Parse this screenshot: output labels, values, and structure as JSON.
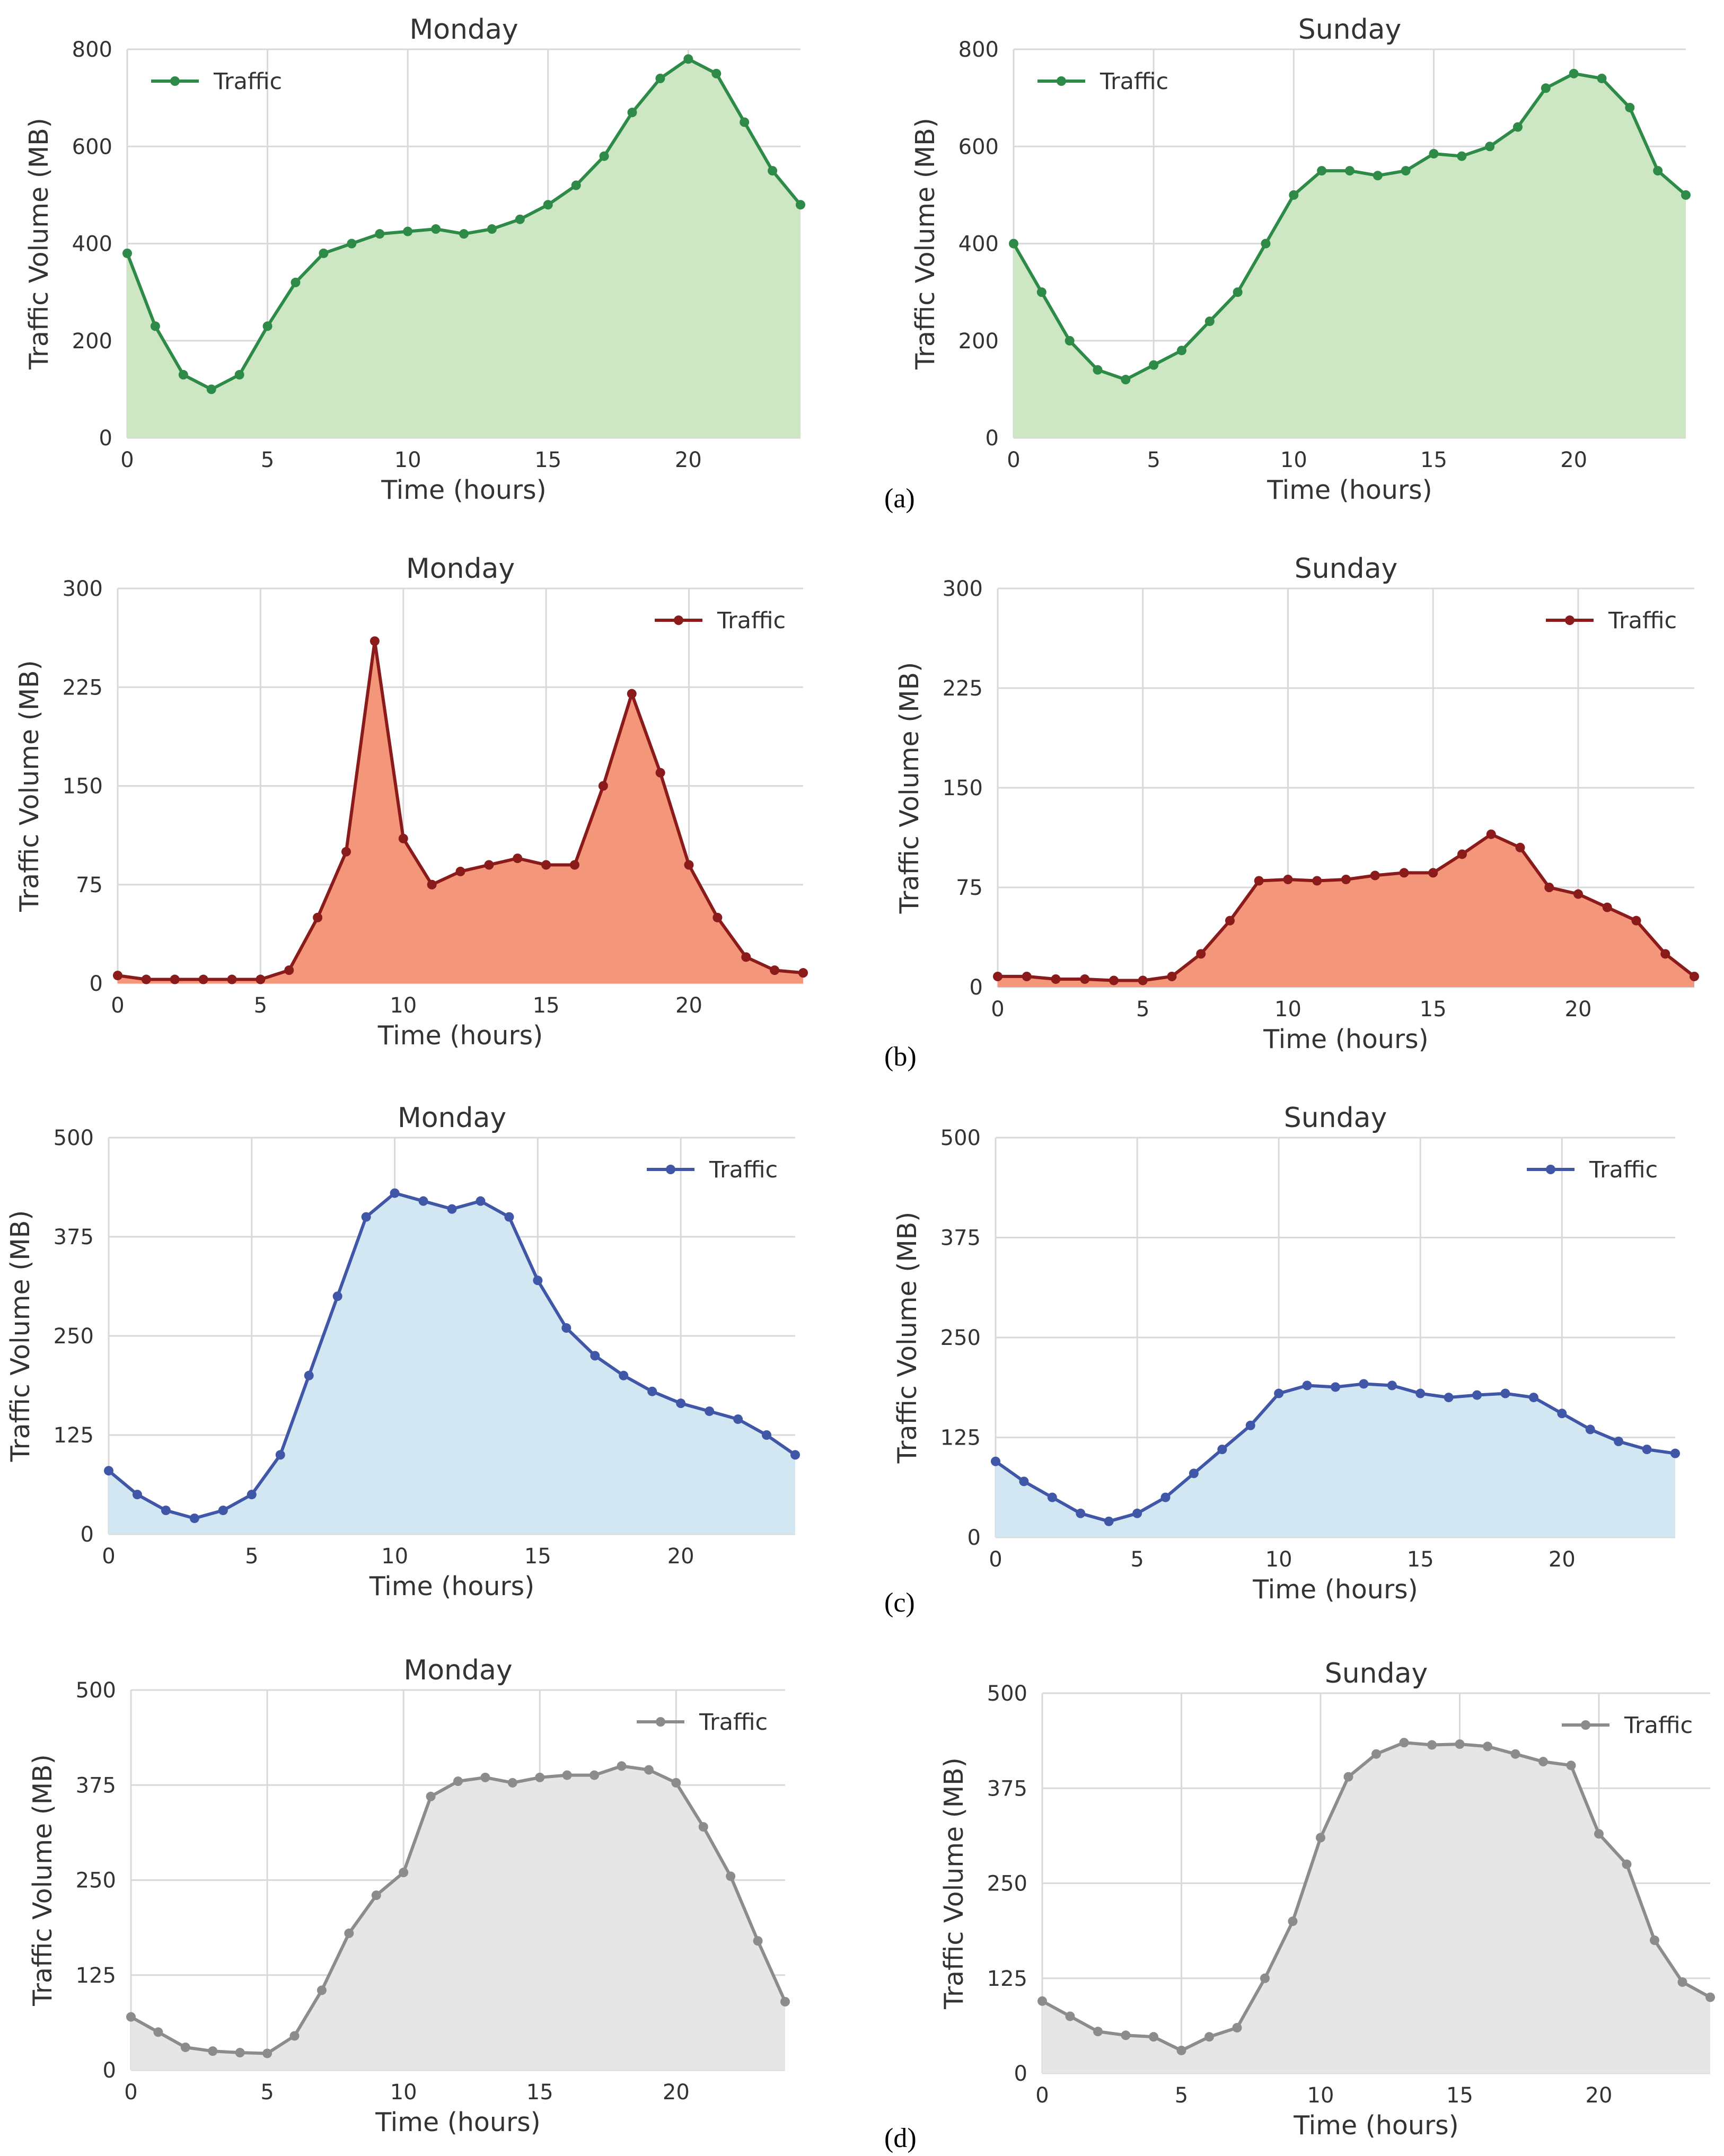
{
  "figure": {
    "panel_labels": [
      "(a)",
      "(b)",
      "(c)",
      "(d)"
    ]
  },
  "chart_data": [
    {
      "type": "area",
      "panel": "(a)",
      "title": "Monday",
      "xlabel": "Time (hours)",
      "ylabel": "Traffic Volume (MB)",
      "legend": "Traffic",
      "legend_position": "top-left",
      "xlim": [
        0,
        24
      ],
      "ylim": [
        0,
        800
      ],
      "xticks": [
        0,
        5,
        10,
        15,
        20
      ],
      "yticks": [
        0,
        200,
        400,
        600,
        800
      ],
      "line_color": "#2e8b47",
      "fill_color": "#cde6c3",
      "x": [
        0,
        1,
        2,
        3,
        4,
        5,
        6,
        7,
        8,
        9,
        10,
        11,
        12,
        13,
        14,
        15,
        16,
        17,
        18,
        19,
        20,
        21,
        22,
        23,
        24
      ],
      "values": [
        380,
        230,
        130,
        100,
        130,
        230,
        320,
        380,
        400,
        420,
        425,
        430,
        420,
        430,
        450,
        480,
        520,
        580,
        670,
        740,
        780,
        750,
        650,
        550,
        480
      ]
    },
    {
      "type": "area",
      "panel": "(a)",
      "title": "Sunday",
      "xlabel": "Time (hours)",
      "ylabel": "Traffic Volume (MB)",
      "legend": "Traffic",
      "legend_position": "top-left",
      "xlim": [
        0,
        24
      ],
      "ylim": [
        0,
        800
      ],
      "xticks": [
        0,
        5,
        10,
        15,
        20
      ],
      "yticks": [
        0,
        200,
        400,
        600,
        800
      ],
      "line_color": "#2e8b47",
      "fill_color": "#cde6c3",
      "x": [
        0,
        1,
        2,
        3,
        4,
        5,
        6,
        7,
        8,
        9,
        10,
        11,
        12,
        13,
        14,
        15,
        16,
        17,
        18,
        19,
        20,
        21,
        22,
        23,
        24
      ],
      "values": [
        400,
        300,
        200,
        140,
        120,
        150,
        180,
        240,
        300,
        400,
        500,
        550,
        550,
        540,
        550,
        585,
        580,
        600,
        640,
        720,
        750,
        740,
        680,
        550,
        500
      ]
    },
    {
      "type": "area",
      "panel": "(b)",
      "title": "Monday",
      "xlabel": "Time (hours)",
      "ylabel": "Traffic Volume (MB)",
      "legend": "Traffic",
      "legend_position": "top-right",
      "xlim": [
        0,
        24
      ],
      "ylim": [
        0,
        300
      ],
      "xticks": [
        0,
        5,
        10,
        15,
        20
      ],
      "yticks": [
        0,
        75,
        150,
        225,
        300
      ],
      "line_color": "#8b1a1a",
      "fill_color": "#f4967a",
      "x": [
        0,
        1,
        2,
        3,
        4,
        5,
        6,
        7,
        8,
        9,
        10,
        11,
        12,
        13,
        14,
        15,
        16,
        17,
        18,
        19,
        20,
        21,
        22,
        23,
        24
      ],
      "values": [
        6,
        3,
        3,
        3,
        3,
        3,
        10,
        50,
        100,
        260,
        110,
        75,
        85,
        90,
        95,
        90,
        90,
        150,
        220,
        160,
        90,
        50,
        20,
        10,
        8
      ]
    },
    {
      "type": "area",
      "panel": "(b)",
      "title": "Sunday",
      "xlabel": "Time (hours)",
      "ylabel": "Traffic Volume (MB)",
      "legend": "Traffic",
      "legend_position": "top-right",
      "xlim": [
        0,
        24
      ],
      "ylim": [
        0,
        300
      ],
      "xticks": [
        0,
        5,
        10,
        15,
        20
      ],
      "yticks": [
        0,
        75,
        150,
        225,
        300
      ],
      "line_color": "#8b1a1a",
      "fill_color": "#f4967a",
      "x": [
        0,
        1,
        2,
        3,
        4,
        5,
        6,
        7,
        8,
        9,
        10,
        11,
        12,
        13,
        14,
        15,
        16,
        17,
        18,
        19,
        20,
        21,
        22,
        23,
        24
      ],
      "values": [
        8,
        8,
        6,
        6,
        5,
        5,
        8,
        25,
        50,
        80,
        81,
        80,
        81,
        84,
        86,
        86,
        100,
        115,
        105,
        75,
        70,
        60,
        50,
        25,
        8
      ]
    },
    {
      "type": "area",
      "panel": "(c)",
      "title": "Monday",
      "xlabel": "Time (hours)",
      "ylabel": "Traffic Volume (MB)",
      "legend": "Traffic",
      "legend_position": "top-right",
      "xlim": [
        0,
        24
      ],
      "ylim": [
        0,
        500
      ],
      "xticks": [
        0,
        5,
        10,
        15,
        20
      ],
      "yticks": [
        0,
        125,
        250,
        375,
        500
      ],
      "line_color": "#3f57a6",
      "fill_color": "#d3e7f3",
      "x": [
        0,
        1,
        2,
        3,
        4,
        5,
        6,
        7,
        8,
        9,
        10,
        11,
        12,
        13,
        14,
        15,
        16,
        17,
        18,
        19,
        20,
        21,
        22,
        23,
        24
      ],
      "values": [
        80,
        50,
        30,
        20,
        30,
        50,
        100,
        200,
        300,
        400,
        430,
        420,
        410,
        420,
        400,
        320,
        260,
        225,
        200,
        180,
        165,
        155,
        145,
        125,
        100
      ]
    },
    {
      "type": "area",
      "panel": "(c)",
      "title": "Sunday",
      "xlabel": "Time (hours)",
      "ylabel": "Traffic Volume (MB)",
      "legend": "Traffic",
      "legend_position": "top-right",
      "xlim": [
        0,
        24
      ],
      "ylim": [
        0,
        500
      ],
      "xticks": [
        0,
        5,
        10,
        15,
        20
      ],
      "yticks": [
        0,
        125,
        250,
        375,
        500
      ],
      "line_color": "#3f57a6",
      "fill_color": "#d3e7f3",
      "x": [
        0,
        1,
        2,
        3,
        4,
        5,
        6,
        7,
        8,
        9,
        10,
        11,
        12,
        13,
        14,
        15,
        16,
        17,
        18,
        19,
        20,
        21,
        22,
        23,
        24
      ],
      "values": [
        95,
        70,
        50,
        30,
        20,
        30,
        50,
        80,
        110,
        140,
        180,
        190,
        188,
        192,
        190,
        180,
        175,
        178,
        180,
        175,
        155,
        135,
        120,
        110,
        105
      ]
    },
    {
      "type": "area",
      "panel": "(d)",
      "title": "Monday",
      "xlabel": "Time (hours)",
      "ylabel": "Traffic Volume (MB)",
      "legend": "Traffic",
      "legend_position": "top-right",
      "xlim": [
        0,
        24
      ],
      "ylim": [
        0,
        500
      ],
      "xticks": [
        0,
        5,
        10,
        15,
        20
      ],
      "yticks": [
        0,
        125,
        250,
        375,
        500
      ],
      "line_color": "#8c8c8c",
      "fill_color": "#e6e6e6",
      "x": [
        0,
        1,
        2,
        3,
        4,
        5,
        6,
        7,
        8,
        9,
        10,
        11,
        12,
        13,
        14,
        15,
        16,
        17,
        18,
        19,
        20,
        21,
        22,
        23,
        24
      ],
      "values": [
        70,
        50,
        30,
        25,
        23,
        22,
        45,
        105,
        180,
        230,
        260,
        360,
        380,
        385,
        378,
        385,
        388,
        388,
        400,
        395,
        378,
        320,
        255,
        170,
        90
      ]
    },
    {
      "type": "area",
      "panel": "(d)",
      "title": "Sunday",
      "xlabel": "Time (hours)",
      "ylabel": "Traffic Volume (MB)",
      "legend": "Traffic",
      "legend_position": "top-right",
      "xlim": [
        0,
        24
      ],
      "ylim": [
        0,
        500
      ],
      "xticks": [
        0,
        5,
        10,
        15,
        20
      ],
      "yticks": [
        0,
        125,
        250,
        375,
        500
      ],
      "line_color": "#8c8c8c",
      "fill_color": "#e6e6e6",
      "x": [
        0,
        1,
        2,
        3,
        4,
        5,
        6,
        7,
        8,
        9,
        10,
        11,
        12,
        13,
        14,
        15,
        16,
        17,
        18,
        19,
        20,
        21,
        22,
        23,
        24
      ],
      "values": [
        95,
        75,
        55,
        50,
        48,
        30,
        48,
        60,
        125,
        200,
        310,
        390,
        420,
        435,
        432,
        433,
        430,
        420,
        410,
        405,
        315,
        275,
        175,
        120,
        100
      ]
    }
  ]
}
